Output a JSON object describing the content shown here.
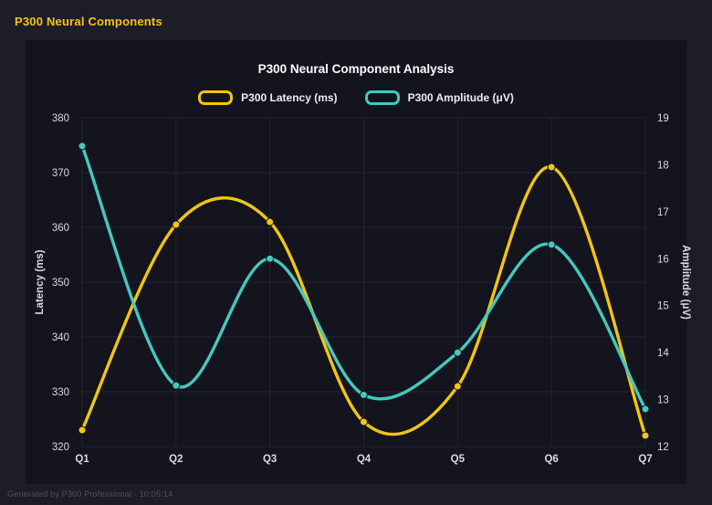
{
  "page": {
    "header_title": "P300 Neural Components",
    "footer_text": "Generated by P300 Professional - 10:05:14"
  },
  "colors": {
    "accent_gold": "#f2c511",
    "teal": "#45c8be",
    "page_background": "#1d1d28",
    "canvas_background": "#14141f",
    "grid": "rgba(255,255,255,0.07)",
    "tick_text": "#d9d9df",
    "title_text": "#ffffff",
    "footer_text": "#51515c"
  },
  "chart_data": {
    "type": "line",
    "title": "P300 Neural Component Analysis",
    "categories": [
      "Q1",
      "Q2",
      "Q3",
      "Q4",
      "Q5",
      "Q6",
      "Q7"
    ],
    "series": [
      {
        "name": "P300 Latency (ms)",
        "axis": "left",
        "color": "#f2c511",
        "values": [
          323,
          360.5,
          361,
          324.5,
          331,
          371,
          322
        ]
      },
      {
        "name": "P300 Amplitude (μV)",
        "axis": "right",
        "color": "#45c8be",
        "values": [
          18.4,
          13.3,
          16,
          13.1,
          14,
          16.3,
          12.8
        ]
      }
    ],
    "left_axis": {
      "label": "Latency (ms)",
      "min": 320,
      "max": 380,
      "step": 10
    },
    "right_axis": {
      "label": "Amplitude (μV)",
      "min": 12,
      "max": 19,
      "step": 1
    },
    "grid": true,
    "legend_position": "top",
    "curve": "smooth"
  }
}
